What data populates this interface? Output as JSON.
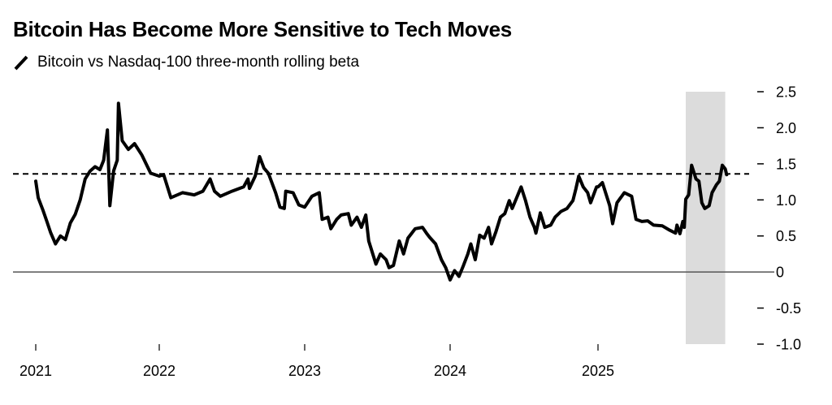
{
  "chart_data": {
    "type": "line",
    "title": "Bitcoin Has Become More Sensitive to Tech Moves",
    "legend": [
      {
        "label": "Bitcoin vs Nasdaq-100 three-month rolling beta",
        "style": "solid-black-line"
      }
    ],
    "xlabel": "",
    "ylabel": "",
    "ylim": [
      -1.0,
      2.5
    ],
    "y_ticks": [
      2.5,
      2.0,
      1.5,
      1.0,
      0.5,
      0,
      -0.5,
      -1.0
    ],
    "y_tick_labels": [
      "2.5",
      "2.0",
      "1.5",
      "1.0",
      "0.5",
      "0",
      "-0.5",
      "-1.0"
    ],
    "y_axis_side": "right",
    "x_ticks": [
      "2021",
      "2022",
      "2023",
      "2024",
      "2025"
    ],
    "grid": false,
    "zero_line": 0,
    "reference_line": {
      "value": 1.36,
      "style": "dashed"
    },
    "shaded_region": {
      "x_start": 2025.6,
      "x_end": 2025.87,
      "y_range": [
        -1.0,
        2.5
      ],
      "color": "#dcdcdc"
    },
    "series": [
      {
        "name": "Bitcoin vs Nasdaq-100 three-month rolling beta",
        "color": "#000000",
        "points": [
          [
            2021.0,
            1.26
          ],
          [
            2021.02,
            1.03
          ],
          [
            2021.06,
            0.85
          ],
          [
            2021.09,
            0.7
          ],
          [
            2021.12,
            0.55
          ],
          [
            2021.16,
            0.39
          ],
          [
            2021.2,
            0.5
          ],
          [
            2021.24,
            0.45
          ],
          [
            2021.28,
            0.68
          ],
          [
            2021.32,
            0.8
          ],
          [
            2021.36,
            1.0
          ],
          [
            2021.4,
            1.29
          ],
          [
            2021.44,
            1.4
          ],
          [
            2021.48,
            1.46
          ],
          [
            2021.52,
            1.42
          ],
          [
            2021.55,
            1.55
          ],
          [
            2021.58,
            1.97
          ],
          [
            2021.6,
            0.92
          ],
          [
            2021.63,
            1.4
          ],
          [
            2021.66,
            1.55
          ],
          [
            2021.67,
            2.34
          ],
          [
            2021.7,
            1.82
          ],
          [
            2021.75,
            1.7
          ],
          [
            2021.8,
            1.78
          ],
          [
            2021.86,
            1.62
          ],
          [
            2021.93,
            1.37
          ],
          [
            2022.0,
            1.33
          ],
          [
            2022.03,
            1.35
          ],
          [
            2022.08,
            1.03
          ],
          [
            2022.16,
            1.1
          ],
          [
            2022.24,
            1.07
          ],
          [
            2022.3,
            1.12
          ],
          [
            2022.35,
            1.29
          ],
          [
            2022.38,
            1.12
          ],
          [
            2022.42,
            1.05
          ],
          [
            2022.5,
            1.12
          ],
          [
            2022.58,
            1.18
          ],
          [
            2022.61,
            1.29
          ],
          [
            2022.62,
            1.16
          ],
          [
            2022.66,
            1.33
          ],
          [
            2022.69,
            1.6
          ],
          [
            2022.72,
            1.44
          ],
          [
            2022.75,
            1.37
          ],
          [
            2022.8,
            1.1
          ],
          [
            2022.83,
            0.9
          ],
          [
            2022.86,
            0.88
          ],
          [
            2022.87,
            1.12
          ],
          [
            2022.92,
            1.1
          ],
          [
            2022.96,
            0.93
          ],
          [
            2023.0,
            0.9
          ],
          [
            2023.05,
            1.05
          ],
          [
            2023.1,
            1.1
          ],
          [
            2023.12,
            0.73
          ],
          [
            2023.16,
            0.76
          ],
          [
            2023.18,
            0.6
          ],
          [
            2023.22,
            0.73
          ],
          [
            2023.25,
            0.79
          ],
          [
            2023.3,
            0.81
          ],
          [
            2023.32,
            0.65
          ],
          [
            2023.36,
            0.76
          ],
          [
            2023.39,
            0.62
          ],
          [
            2023.42,
            0.79
          ],
          [
            2023.44,
            0.43
          ],
          [
            2023.49,
            0.11
          ],
          [
            2023.52,
            0.25
          ],
          [
            2023.56,
            0.17
          ],
          [
            2023.58,
            0.06
          ],
          [
            2023.61,
            0.09
          ],
          [
            2023.65,
            0.43
          ],
          [
            2023.68,
            0.25
          ],
          [
            2023.71,
            0.47
          ],
          [
            2023.76,
            0.6
          ],
          [
            2023.81,
            0.62
          ],
          [
            2023.84,
            0.53
          ],
          [
            2023.86,
            0.48
          ],
          [
            2023.9,
            0.39
          ],
          [
            2023.94,
            0.17
          ],
          [
            2023.97,
            0.06
          ],
          [
            2024.0,
            -0.11
          ],
          [
            2024.03,
            0.02
          ],
          [
            2024.06,
            -0.06
          ],
          [
            2024.09,
            0.09
          ],
          [
            2024.12,
            0.25
          ],
          [
            2024.14,
            0.39
          ],
          [
            2024.17,
            0.17
          ],
          [
            2024.2,
            0.51
          ],
          [
            2024.23,
            0.47
          ],
          [
            2024.26,
            0.62
          ],
          [
            2024.28,
            0.39
          ],
          [
            2024.31,
            0.56
          ],
          [
            2024.34,
            0.76
          ],
          [
            2024.37,
            0.81
          ],
          [
            2024.4,
            0.99
          ],
          [
            2024.42,
            0.88
          ],
          [
            2024.45,
            1.03
          ],
          [
            2024.48,
            1.18
          ],
          [
            2024.51,
            0.99
          ],
          [
            2024.54,
            0.76
          ],
          [
            2024.57,
            0.62
          ],
          [
            2024.58,
            0.54
          ],
          [
            2024.61,
            0.82
          ],
          [
            2024.64,
            0.62
          ],
          [
            2024.68,
            0.65
          ],
          [
            2024.71,
            0.76
          ],
          [
            2024.75,
            0.84
          ],
          [
            2024.79,
            0.88
          ],
          [
            2024.83,
            0.99
          ],
          [
            2024.85,
            1.15
          ],
          [
            2024.87,
            1.33
          ],
          [
            2024.9,
            1.18
          ],
          [
            2024.93,
            1.1
          ],
          [
            2024.95,
            0.96
          ],
          [
            2024.99,
            1.18
          ],
          [
            2025.0,
            1.18
          ],
          [
            2025.03,
            1.24
          ],
          [
            2025.08,
            0.92
          ],
          [
            2025.1,
            0.67
          ],
          [
            2025.13,
            0.96
          ],
          [
            2025.18,
            1.1
          ],
          [
            2025.23,
            1.05
          ],
          [
            2025.26,
            0.73
          ],
          [
            2025.3,
            0.7
          ],
          [
            2025.34,
            0.71
          ],
          [
            2025.38,
            0.65
          ],
          [
            2025.44,
            0.64
          ],
          [
            2025.49,
            0.58
          ],
          [
            2025.53,
            0.54
          ],
          [
            2025.54,
            0.65
          ],
          [
            2025.56,
            0.53
          ],
          [
            2025.58,
            0.7
          ],
          [
            2025.59,
            0.62
          ],
          [
            2025.6,
            1.01
          ],
          [
            2025.62,
            1.07
          ],
          [
            2025.64,
            1.48
          ],
          [
            2025.67,
            1.29
          ],
          [
            2025.69,
            1.26
          ],
          [
            2025.71,
            0.96
          ],
          [
            2025.73,
            0.88
          ],
          [
            2025.76,
            0.92
          ],
          [
            2025.78,
            1.1
          ],
          [
            2025.81,
            1.21
          ],
          [
            2025.83,
            1.26
          ],
          [
            2025.85,
            1.48
          ],
          [
            2025.87,
            1.43
          ],
          [
            2025.88,
            1.35
          ]
        ]
      }
    ]
  }
}
